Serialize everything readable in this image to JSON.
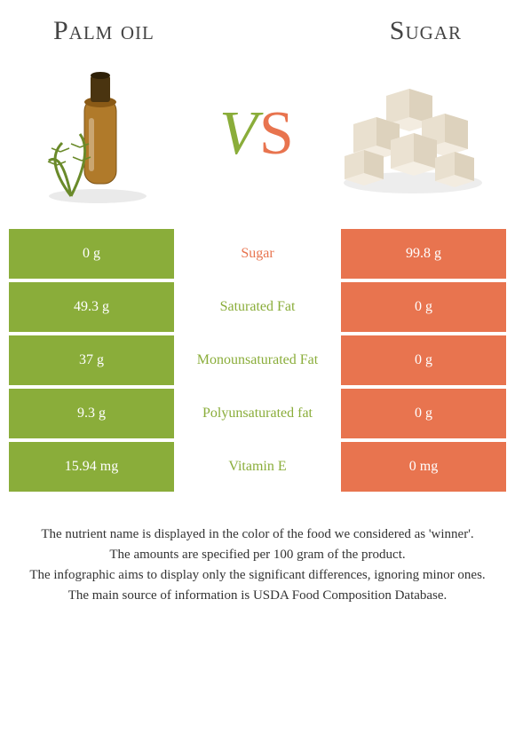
{
  "left_food": {
    "name": "Palm oil",
    "color": "#8aad3a"
  },
  "right_food": {
    "name": "Sugar",
    "color": "#e8744f"
  },
  "vs": {
    "v": "V",
    "s": "S"
  },
  "rows": [
    {
      "left": "0 g",
      "label": "Sugar",
      "right": "99.8 g",
      "winner": "right"
    },
    {
      "left": "49.3 g",
      "label": "Saturated Fat",
      "right": "0 g",
      "winner": "left"
    },
    {
      "left": "37 g",
      "label": "Monounsaturated Fat",
      "right": "0 g",
      "winner": "left"
    },
    {
      "left": "9.3 g",
      "label": "Polyunsaturated fat",
      "right": "0 g",
      "winner": "left"
    },
    {
      "left": "15.94 mg",
      "label": "Vitamin E",
      "right": "0 mg",
      "winner": "left"
    }
  ],
  "footer": [
    "The nutrient name is displayed in the color of the food we considered as 'winner'.",
    "The amounts are specified per 100 gram of the product.",
    "The infographic aims to display only the significant differences, ignoring minor ones.",
    "The main source of information is USDA Food Composition Database."
  ]
}
